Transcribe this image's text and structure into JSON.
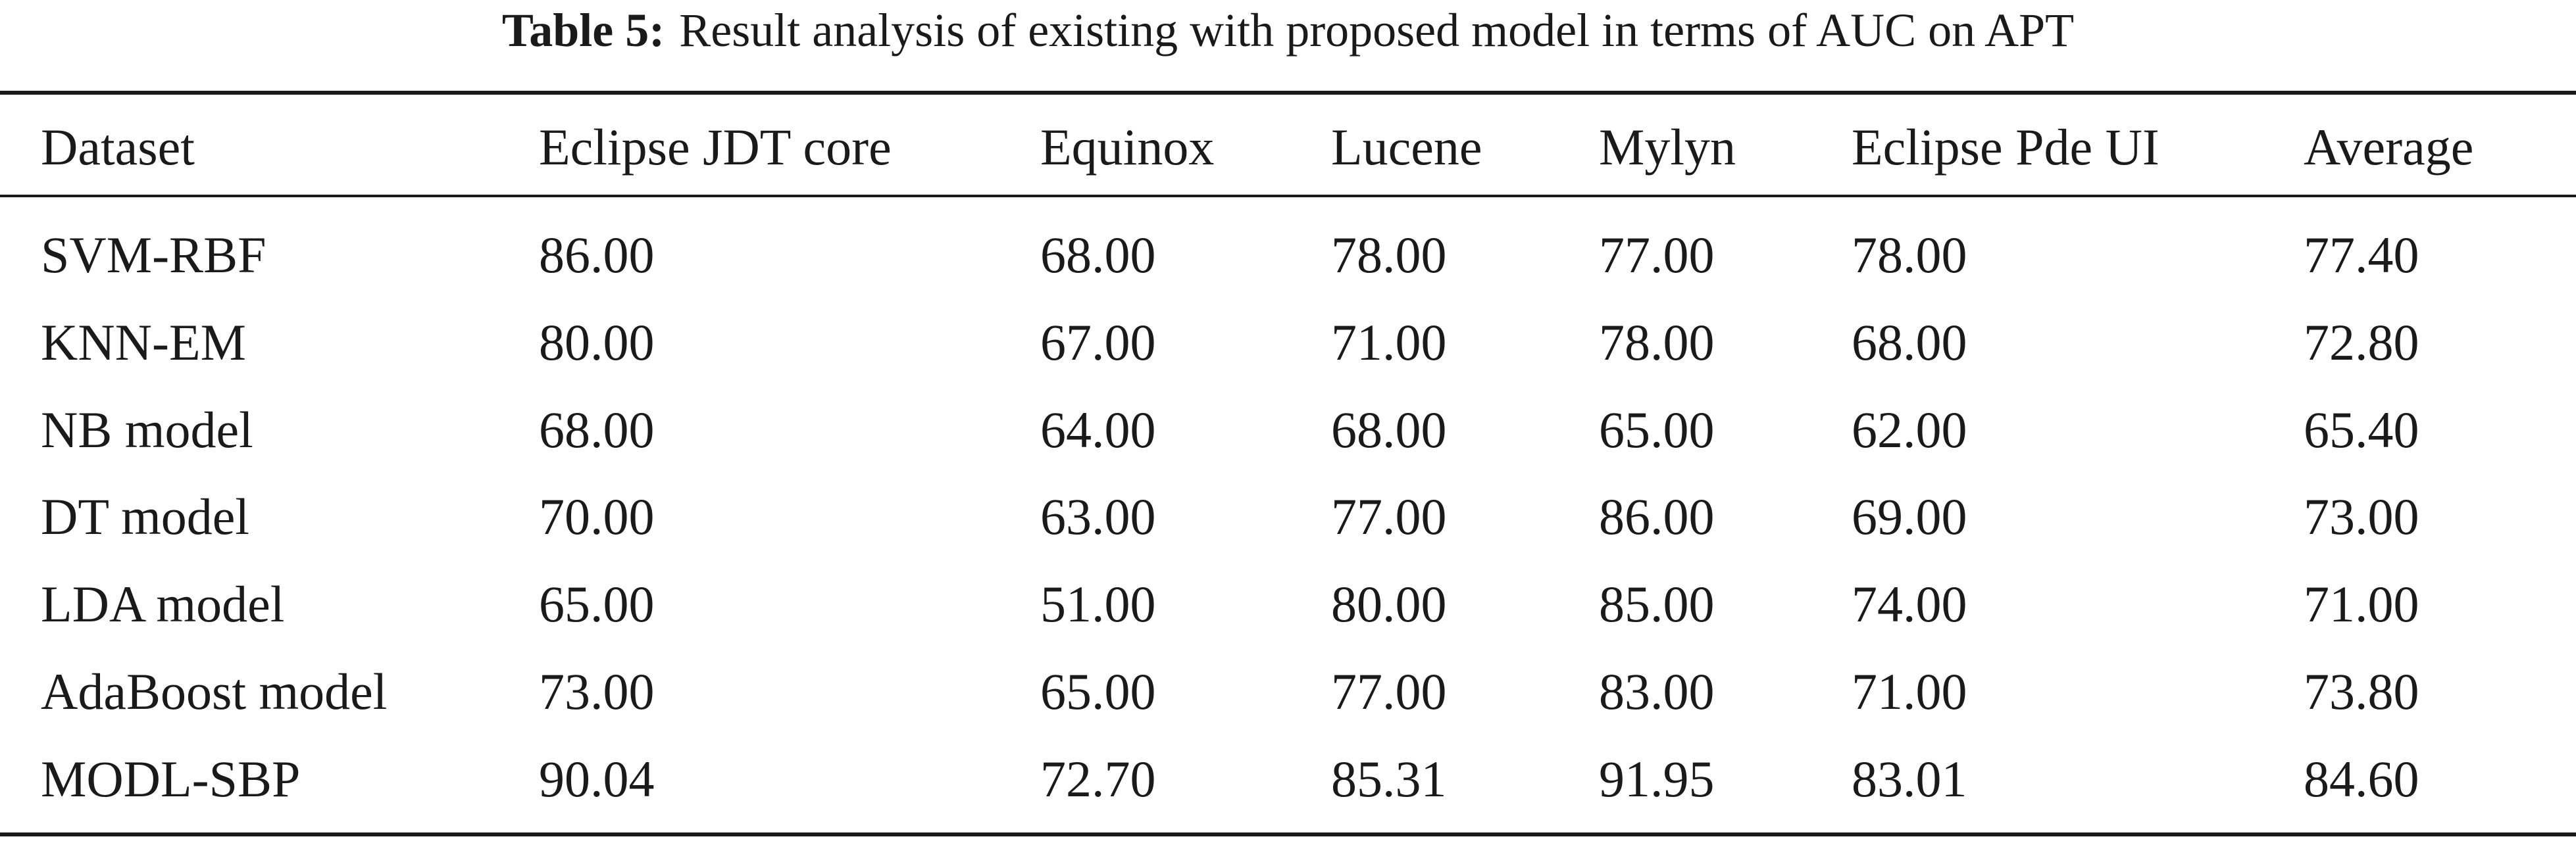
{
  "title": {
    "label": "Table 5:",
    "text": "Result analysis of existing with proposed model in terms of AUC on APT"
  },
  "table": {
    "header": [
      "Dataset",
      "Eclipse JDT core",
      "Equinox",
      "Lucene",
      "Mylyn",
      "Eclipse Pde UI",
      "Average"
    ],
    "rows": [
      [
        "SVM-RBF",
        "86.00",
        "68.00",
        "78.00",
        "77.00",
        "78.00",
        "77.40"
      ],
      [
        "KNN-EM",
        "80.00",
        "67.00",
        "71.00",
        "78.00",
        "68.00",
        "72.80"
      ],
      [
        "NB model",
        "68.00",
        "64.00",
        "68.00",
        "65.00",
        "62.00",
        "65.40"
      ],
      [
        "DT model",
        "70.00",
        "63.00",
        "77.00",
        "86.00",
        "69.00",
        "73.00"
      ],
      [
        "LDA model",
        "65.00",
        "51.00",
        "80.00",
        "85.00",
        "74.00",
        "71.00"
      ],
      [
        "AdaBoost model",
        "73.00",
        "65.00",
        "77.00",
        "83.00",
        "71.00",
        "73.80"
      ],
      [
        "MODL-SBP",
        "90.04",
        "72.70",
        "85.31",
        "91.95",
        "83.01",
        "84.60"
      ]
    ]
  }
}
